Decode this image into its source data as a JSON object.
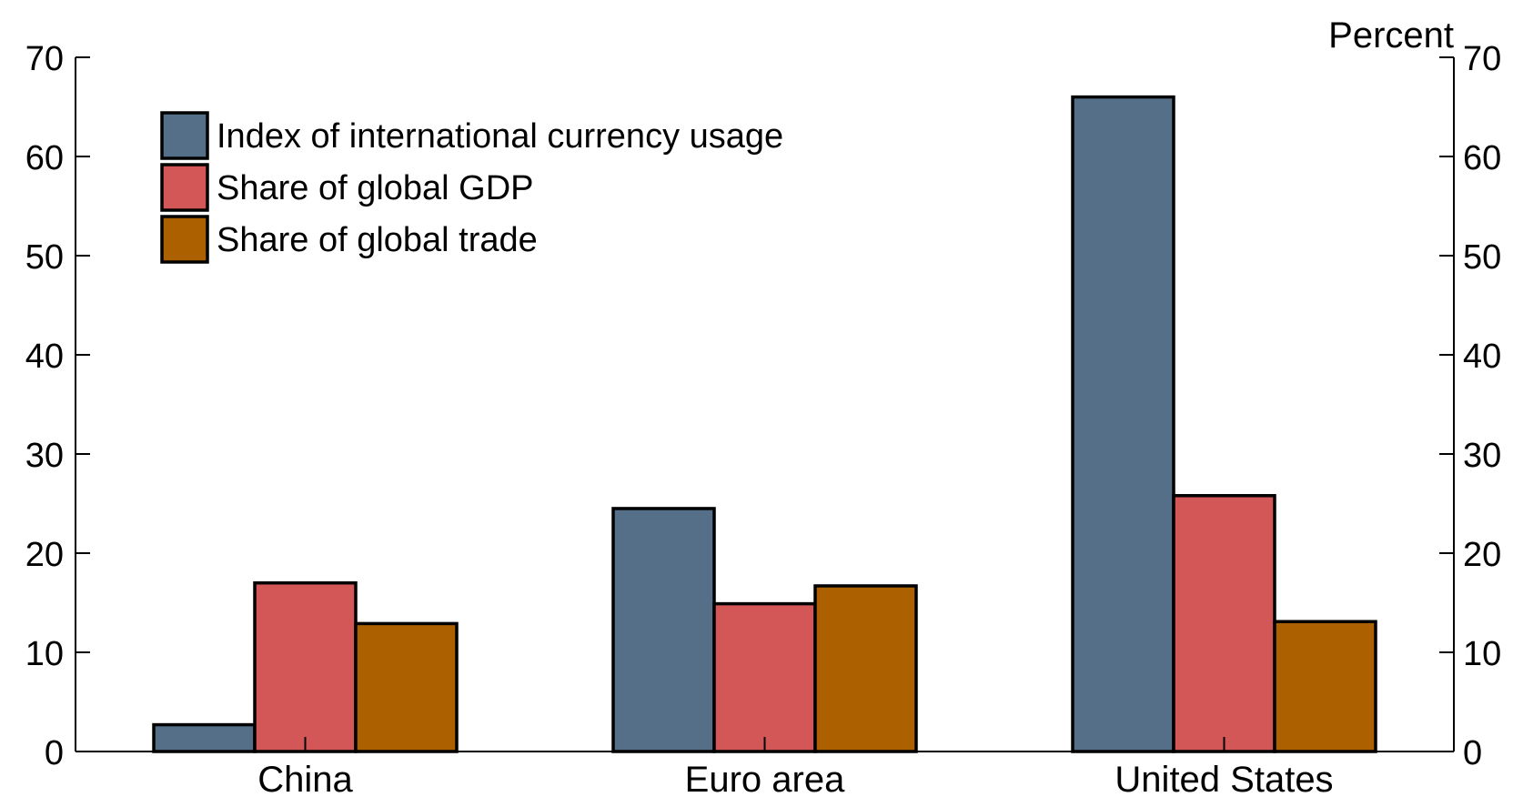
{
  "chart_data": {
    "type": "bar",
    "categories": [
      "China",
      "Euro area",
      "United States"
    ],
    "series": [
      {
        "name": "Index of international currency usage",
        "values": [
          2.7,
          24.5,
          66.0
        ],
        "color": "#566f89"
      },
      {
        "name": "Share of global GDP",
        "values": [
          17.0,
          14.9,
          25.8
        ],
        "color": "#d35757"
      },
      {
        "name": "Share of global trade",
        "values": [
          12.9,
          16.7,
          13.1
        ],
        "color": "#ac6000"
      }
    ],
    "unit_label": "Percent",
    "ylim": [
      0,
      70
    ],
    "yticks": [
      0,
      10,
      20,
      30,
      40,
      50,
      60,
      70
    ],
    "legend_position": "top-left",
    "grid": false
  }
}
